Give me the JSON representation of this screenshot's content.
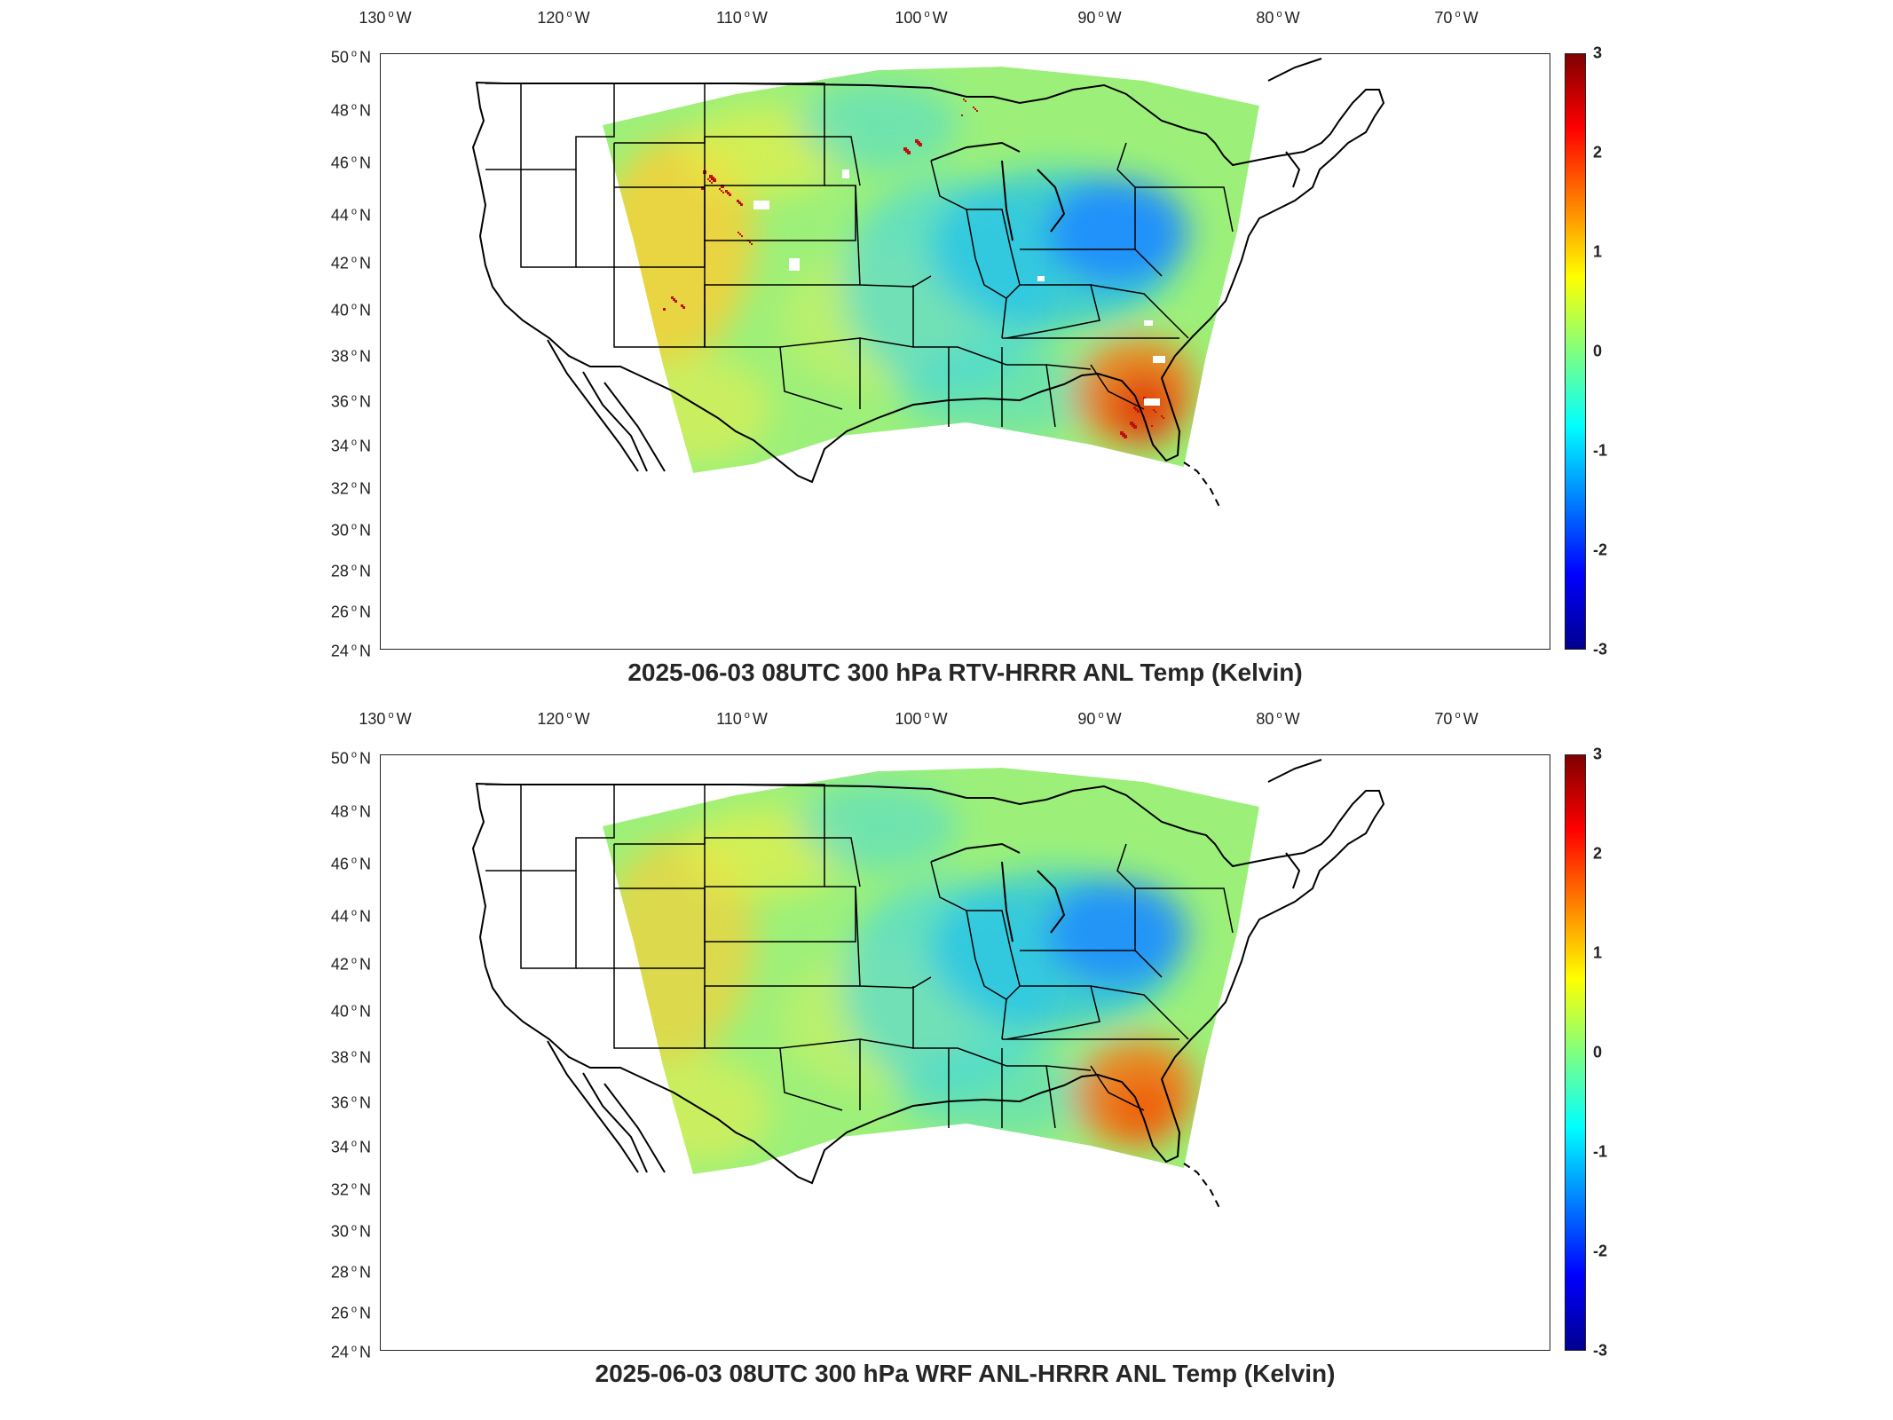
{
  "panels": [
    {
      "title": "2025-06-03 08UTC 300 hPa RTV-HRRR ANL Temp (Kelvin)",
      "field_style": "rtv"
    },
    {
      "title": "2025-06-03 08UTC 300 hPa WRF ANL-HRRR ANL Temp (Kelvin)",
      "field_style": "wrf"
    }
  ],
  "longitude_labels": [
    "130",
    "120",
    "110",
    "100",
    "90",
    "80",
    "70"
  ],
  "longitude_suffix": "W",
  "latitude_labels": [
    "50",
    "48",
    "46",
    "44",
    "42",
    "40",
    "38",
    "36",
    "34",
    "32",
    "30",
    "28",
    "26",
    "24"
  ],
  "latitude_suffix": "N",
  "colorbar": {
    "ticks": [
      "3",
      "2",
      "1",
      "0",
      "-1",
      "-2",
      "-3"
    ],
    "min": -3,
    "max": 3,
    "colormap": "jet"
  },
  "colors": {
    "outline": "#000000",
    "frame": "#222222",
    "field_neutral": "#9cf07a",
    "field_warm": "#f2d23c",
    "field_cold": "#1e8cff"
  }
}
